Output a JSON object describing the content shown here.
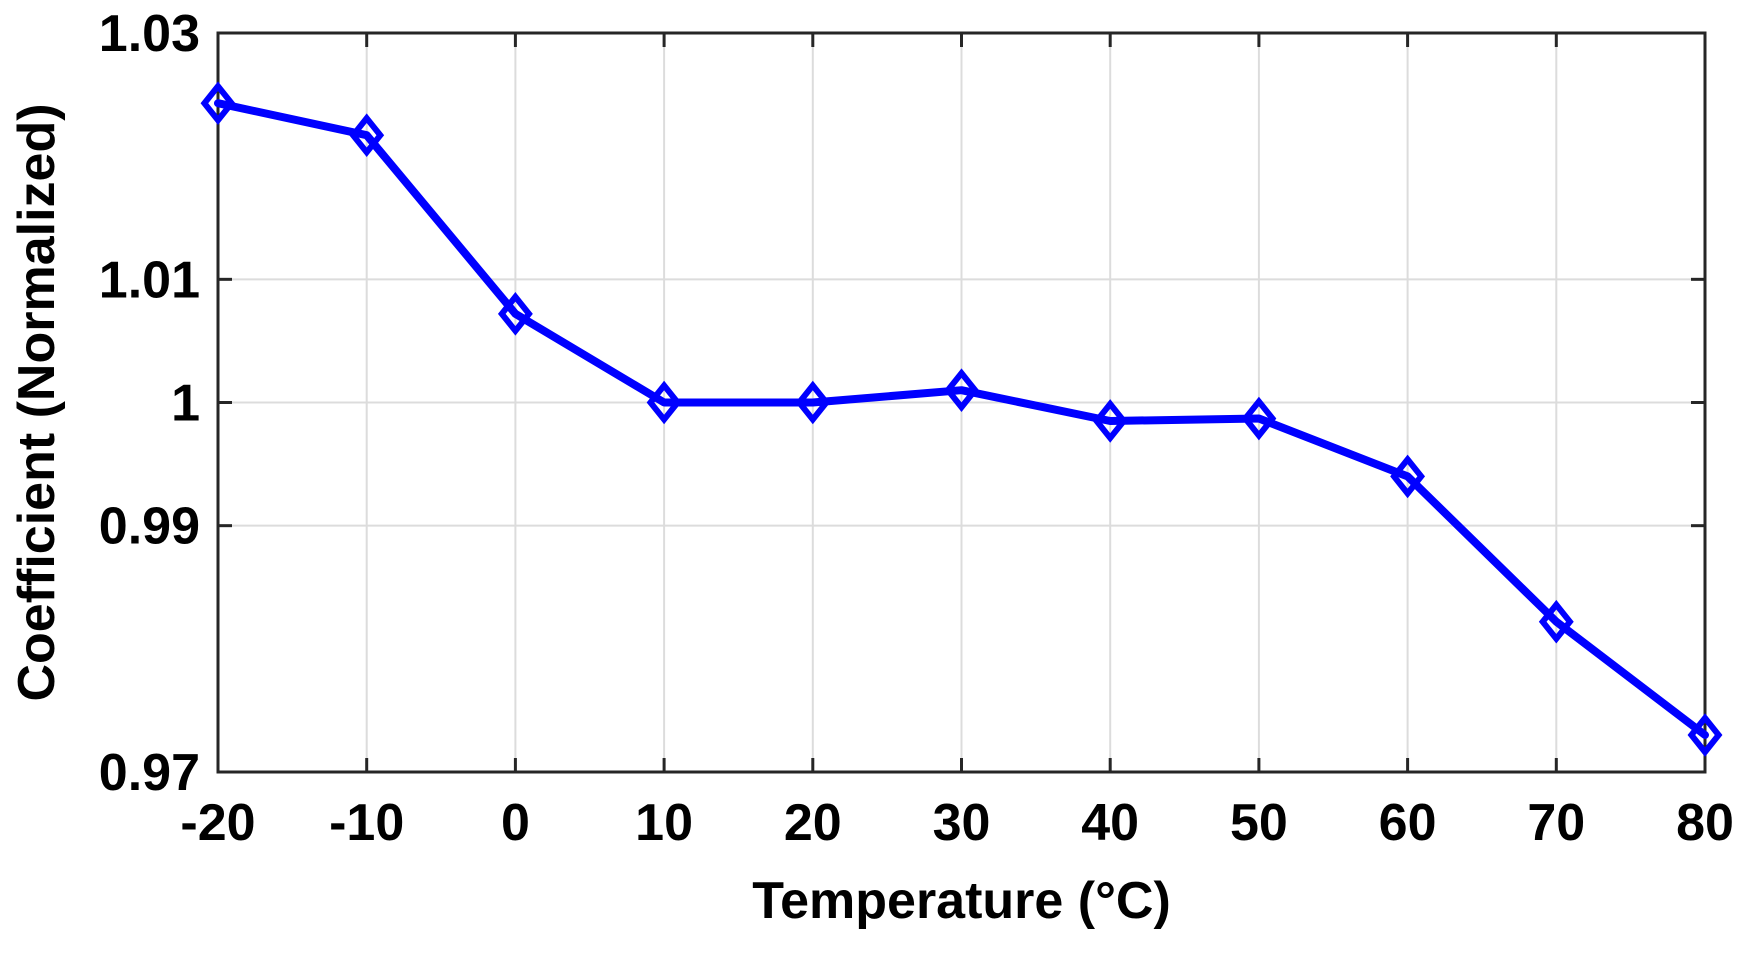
{
  "chart_data": {
    "type": "line",
    "title": "",
    "xlabel": "Temperature (°C)",
    "ylabel": "Coefficient (Normalized)",
    "x": [
      -20,
      -10,
      0,
      10,
      20,
      30,
      40,
      50,
      60,
      70,
      80
    ],
    "series": [
      {
        "name": "",
        "values": [
          1.0243,
          1.0217,
          1.0072,
          1.0,
          1.0,
          1.001,
          0.9985,
          0.9987,
          0.994,
          0.9822,
          0.973
        ],
        "color": "#0000ff",
        "marker": "diamond"
      }
    ],
    "xlim": [
      -20,
      80
    ],
    "ylim": [
      0.97,
      1.03
    ],
    "x_ticks": [
      -20,
      -10,
      0,
      10,
      20,
      30,
      40,
      50,
      60,
      70,
      80
    ],
    "x_tick_labels": [
      "-20",
      "-10",
      "0",
      "10",
      "20",
      "30",
      "40",
      "50",
      "60",
      "70",
      "80"
    ],
    "y_ticks": [
      0.97,
      0.99,
      1.0,
      1.01,
      1.03
    ],
    "y_tick_labels": [
      "0.97",
      "0.99",
      "1",
      "1.01",
      "1.03"
    ],
    "grid": true,
    "legend": "none"
  }
}
